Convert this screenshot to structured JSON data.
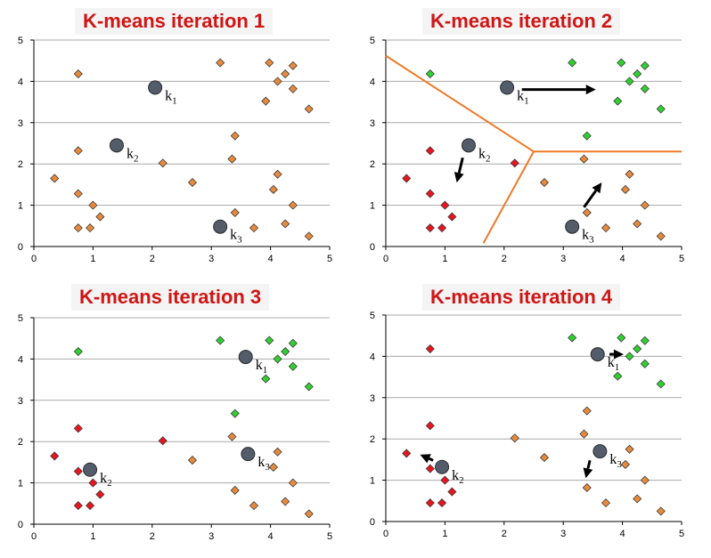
{
  "colors": {
    "orange": "#e88a3c",
    "red": "#e8141e",
    "green": "#2fd12f",
    "centroid": "#525c6b",
    "boundary": "#ee7a28",
    "grid": "#a9a9a9"
  },
  "chart_data": [
    {
      "type": "scatter",
      "title": "K-means iteration 1",
      "xlim": [
        0,
        5
      ],
      "ylim": [
        0,
        5
      ],
      "xticks": [
        "0",
        "1",
        "2",
        "3",
        "4",
        "5"
      ],
      "yticks": [
        "0",
        "1",
        "2",
        "3",
        "4",
        "5"
      ],
      "grid": "horizontal",
      "points": [
        {
          "x": 0.75,
          "y": 4.18,
          "c": "orange"
        },
        {
          "x": 3.15,
          "y": 4.45,
          "c": "orange"
        },
        {
          "x": 3.98,
          "y": 4.45,
          "c": "orange"
        },
        {
          "x": 4.38,
          "y": 4.38,
          "c": "orange"
        },
        {
          "x": 4.25,
          "y": 4.18,
          "c": "orange"
        },
        {
          "x": 4.12,
          "y": 4.0,
          "c": "orange"
        },
        {
          "x": 4.38,
          "y": 3.82,
          "c": "orange"
        },
        {
          "x": 3.92,
          "y": 3.52,
          "c": "orange"
        },
        {
          "x": 4.65,
          "y": 3.33,
          "c": "orange"
        },
        {
          "x": 3.4,
          "y": 2.68,
          "c": "orange"
        },
        {
          "x": 0.75,
          "y": 2.32,
          "c": "orange"
        },
        {
          "x": 3.35,
          "y": 2.12,
          "c": "orange"
        },
        {
          "x": 2.18,
          "y": 2.02,
          "c": "orange"
        },
        {
          "x": 4.12,
          "y": 1.75,
          "c": "orange"
        },
        {
          "x": 0.35,
          "y": 1.65,
          "c": "orange"
        },
        {
          "x": 2.68,
          "y": 1.55,
          "c": "orange"
        },
        {
          "x": 4.05,
          "y": 1.38,
          "c": "orange"
        },
        {
          "x": 0.75,
          "y": 1.28,
          "c": "orange"
        },
        {
          "x": 1.0,
          "y": 1.0,
          "c": "orange"
        },
        {
          "x": 4.38,
          "y": 1.0,
          "c": "orange"
        },
        {
          "x": 3.4,
          "y": 0.82,
          "c": "orange"
        },
        {
          "x": 1.12,
          "y": 0.72,
          "c": "orange"
        },
        {
          "x": 4.25,
          "y": 0.55,
          "c": "orange"
        },
        {
          "x": 0.75,
          "y": 0.45,
          "c": "orange"
        },
        {
          "x": 0.95,
          "y": 0.45,
          "c": "orange"
        },
        {
          "x": 3.72,
          "y": 0.45,
          "c": "orange"
        },
        {
          "x": 4.65,
          "y": 0.25,
          "c": "orange"
        }
      ],
      "centroids": [
        {
          "x": 2.05,
          "y": 3.85,
          "label": "k",
          "sub": "1"
        },
        {
          "x": 1.4,
          "y": 2.45,
          "label": "k",
          "sub": "2"
        },
        {
          "x": 3.15,
          "y": 0.48,
          "label": "k",
          "sub": "3"
        }
      ],
      "arrows": [],
      "boundaries": []
    },
    {
      "type": "scatter",
      "title": "K-means iteration 2",
      "xlim": [
        0,
        5
      ],
      "ylim": [
        0,
        5
      ],
      "xticks": [
        "0",
        "1",
        "2",
        "3",
        "4",
        "5"
      ],
      "yticks": [
        "0",
        "1",
        "2",
        "3",
        "4",
        "5"
      ],
      "grid": "horizontal",
      "points": [
        {
          "x": 0.75,
          "y": 4.18,
          "c": "green"
        },
        {
          "x": 3.15,
          "y": 4.45,
          "c": "green"
        },
        {
          "x": 3.98,
          "y": 4.45,
          "c": "green"
        },
        {
          "x": 4.38,
          "y": 4.38,
          "c": "green"
        },
        {
          "x": 4.25,
          "y": 4.18,
          "c": "green"
        },
        {
          "x": 4.12,
          "y": 4.0,
          "c": "green"
        },
        {
          "x": 4.38,
          "y": 3.82,
          "c": "green"
        },
        {
          "x": 3.92,
          "y": 3.52,
          "c": "green"
        },
        {
          "x": 4.65,
          "y": 3.33,
          "c": "green"
        },
        {
          "x": 3.4,
          "y": 2.68,
          "c": "green"
        },
        {
          "x": 0.75,
          "y": 2.32,
          "c": "red"
        },
        {
          "x": 3.35,
          "y": 2.12,
          "c": "orange"
        },
        {
          "x": 2.18,
          "y": 2.02,
          "c": "red"
        },
        {
          "x": 4.12,
          "y": 1.75,
          "c": "orange"
        },
        {
          "x": 0.35,
          "y": 1.65,
          "c": "red"
        },
        {
          "x": 2.68,
          "y": 1.55,
          "c": "orange"
        },
        {
          "x": 4.05,
          "y": 1.38,
          "c": "orange"
        },
        {
          "x": 0.75,
          "y": 1.28,
          "c": "red"
        },
        {
          "x": 1.0,
          "y": 1.0,
          "c": "red"
        },
        {
          "x": 4.38,
          "y": 1.0,
          "c": "orange"
        },
        {
          "x": 3.4,
          "y": 0.82,
          "c": "orange"
        },
        {
          "x": 1.12,
          "y": 0.72,
          "c": "red"
        },
        {
          "x": 4.25,
          "y": 0.55,
          "c": "orange"
        },
        {
          "x": 0.75,
          "y": 0.45,
          "c": "red"
        },
        {
          "x": 0.95,
          "y": 0.45,
          "c": "red"
        },
        {
          "x": 3.72,
          "y": 0.45,
          "c": "orange"
        },
        {
          "x": 4.65,
          "y": 0.25,
          "c": "orange"
        }
      ],
      "centroids": [
        {
          "x": 2.05,
          "y": 3.85,
          "label": "k",
          "sub": "1"
        },
        {
          "x": 1.4,
          "y": 2.45,
          "label": "k",
          "sub": "2"
        },
        {
          "x": 3.15,
          "y": 0.48,
          "label": "k",
          "sub": "3"
        }
      ],
      "arrows": [
        {
          "from": [
            2.3,
            3.8
          ],
          "to": [
            3.55,
            3.8
          ]
        },
        {
          "from": [
            1.3,
            2.15
          ],
          "to": [
            1.2,
            1.55
          ]
        },
        {
          "from": [
            3.35,
            0.95
          ],
          "to": [
            3.65,
            1.55
          ]
        }
      ],
      "boundaries": [
        [
          [
            0.0,
            4.62
          ],
          [
            2.5,
            2.3
          ]
        ],
        [
          [
            2.5,
            2.3
          ],
          [
            5.0,
            2.3
          ]
        ],
        [
          [
            2.5,
            2.3
          ],
          [
            1.65,
            0.08
          ]
        ]
      ]
    },
    {
      "type": "scatter",
      "title": "K-means iteration 3",
      "xlim": [
        0,
        5
      ],
      "ylim": [
        0,
        5
      ],
      "xticks": [
        "0",
        "1",
        "2",
        "3",
        "4",
        "5"
      ],
      "yticks": [
        "0",
        "1",
        "2",
        "3",
        "4",
        "5"
      ],
      "grid": "horizontal",
      "points": [
        {
          "x": 0.75,
          "y": 4.18,
          "c": "green"
        },
        {
          "x": 3.15,
          "y": 4.45,
          "c": "green"
        },
        {
          "x": 3.98,
          "y": 4.45,
          "c": "green"
        },
        {
          "x": 4.38,
          "y": 4.38,
          "c": "green"
        },
        {
          "x": 4.25,
          "y": 4.18,
          "c": "green"
        },
        {
          "x": 4.12,
          "y": 4.0,
          "c": "green"
        },
        {
          "x": 4.38,
          "y": 3.82,
          "c": "green"
        },
        {
          "x": 3.92,
          "y": 3.52,
          "c": "green"
        },
        {
          "x": 4.65,
          "y": 3.33,
          "c": "green"
        },
        {
          "x": 3.4,
          "y": 2.68,
          "c": "green"
        },
        {
          "x": 0.75,
          "y": 2.32,
          "c": "red"
        },
        {
          "x": 3.35,
          "y": 2.12,
          "c": "orange"
        },
        {
          "x": 2.18,
          "y": 2.02,
          "c": "red"
        },
        {
          "x": 4.12,
          "y": 1.75,
          "c": "orange"
        },
        {
          "x": 0.35,
          "y": 1.65,
          "c": "red"
        },
        {
          "x": 2.68,
          "y": 1.55,
          "c": "orange"
        },
        {
          "x": 4.05,
          "y": 1.38,
          "c": "orange"
        },
        {
          "x": 0.75,
          "y": 1.28,
          "c": "red"
        },
        {
          "x": 1.0,
          "y": 1.0,
          "c": "red"
        },
        {
          "x": 4.38,
          "y": 1.0,
          "c": "orange"
        },
        {
          "x": 3.4,
          "y": 0.82,
          "c": "orange"
        },
        {
          "x": 1.12,
          "y": 0.72,
          "c": "red"
        },
        {
          "x": 4.25,
          "y": 0.55,
          "c": "orange"
        },
        {
          "x": 0.75,
          "y": 0.45,
          "c": "red"
        },
        {
          "x": 0.95,
          "y": 0.45,
          "c": "red"
        },
        {
          "x": 3.72,
          "y": 0.45,
          "c": "orange"
        },
        {
          "x": 4.65,
          "y": 0.25,
          "c": "orange"
        }
      ],
      "centroids": [
        {
          "x": 3.58,
          "y": 4.05,
          "label": "k",
          "sub": "1"
        },
        {
          "x": 0.95,
          "y": 1.32,
          "label": "k",
          "sub": "2"
        },
        {
          "x": 3.62,
          "y": 1.7,
          "label": "k",
          "sub": "3"
        }
      ],
      "arrows": [],
      "boundaries": []
    },
    {
      "type": "scatter",
      "title": "K-means iteration 4",
      "xlim": [
        0,
        5
      ],
      "ylim": [
        0,
        5
      ],
      "xticks": [
        "0",
        "1",
        "2",
        "3",
        "4",
        "5"
      ],
      "yticks": [
        "0",
        "1",
        "2",
        "3",
        "4",
        "5"
      ],
      "grid": "horizontal",
      "points": [
        {
          "x": 0.75,
          "y": 4.18,
          "c": "red"
        },
        {
          "x": 3.15,
          "y": 4.45,
          "c": "green"
        },
        {
          "x": 3.98,
          "y": 4.45,
          "c": "green"
        },
        {
          "x": 4.38,
          "y": 4.38,
          "c": "green"
        },
        {
          "x": 4.25,
          "y": 4.18,
          "c": "green"
        },
        {
          "x": 4.12,
          "y": 4.0,
          "c": "green"
        },
        {
          "x": 4.38,
          "y": 3.82,
          "c": "green"
        },
        {
          "x": 3.92,
          "y": 3.52,
          "c": "green"
        },
        {
          "x": 4.65,
          "y": 3.33,
          "c": "green"
        },
        {
          "x": 3.4,
          "y": 2.68,
          "c": "orange"
        },
        {
          "x": 0.75,
          "y": 2.32,
          "c": "red"
        },
        {
          "x": 3.35,
          "y": 2.12,
          "c": "orange"
        },
        {
          "x": 2.18,
          "y": 2.02,
          "c": "orange"
        },
        {
          "x": 4.12,
          "y": 1.75,
          "c": "orange"
        },
        {
          "x": 0.35,
          "y": 1.65,
          "c": "red"
        },
        {
          "x": 2.68,
          "y": 1.55,
          "c": "orange"
        },
        {
          "x": 4.05,
          "y": 1.38,
          "c": "orange"
        },
        {
          "x": 0.75,
          "y": 1.28,
          "c": "red"
        },
        {
          "x": 1.0,
          "y": 1.0,
          "c": "red"
        },
        {
          "x": 4.38,
          "y": 1.0,
          "c": "orange"
        },
        {
          "x": 3.4,
          "y": 0.82,
          "c": "orange"
        },
        {
          "x": 1.12,
          "y": 0.72,
          "c": "red"
        },
        {
          "x": 4.25,
          "y": 0.55,
          "c": "orange"
        },
        {
          "x": 0.75,
          "y": 0.45,
          "c": "red"
        },
        {
          "x": 0.95,
          "y": 0.45,
          "c": "red"
        },
        {
          "x": 3.72,
          "y": 0.45,
          "c": "orange"
        },
        {
          "x": 4.65,
          "y": 0.25,
          "c": "orange"
        }
      ],
      "centroids": [
        {
          "x": 3.58,
          "y": 4.05,
          "label": "k",
          "sub": "1"
        },
        {
          "x": 0.95,
          "y": 1.32,
          "label": "k",
          "sub": "2"
        },
        {
          "x": 3.62,
          "y": 1.7,
          "label": "k",
          "sub": "3"
        }
      ],
      "arrows": [
        {
          "from": [
            3.78,
            4.05
          ],
          "to": [
            4.02,
            4.05
          ]
        },
        {
          "from": [
            0.8,
            1.48
          ],
          "to": [
            0.58,
            1.62
          ]
        },
        {
          "from": [
            3.45,
            1.48
          ],
          "to": [
            3.38,
            1.05
          ]
        }
      ],
      "boundaries": []
    }
  ]
}
